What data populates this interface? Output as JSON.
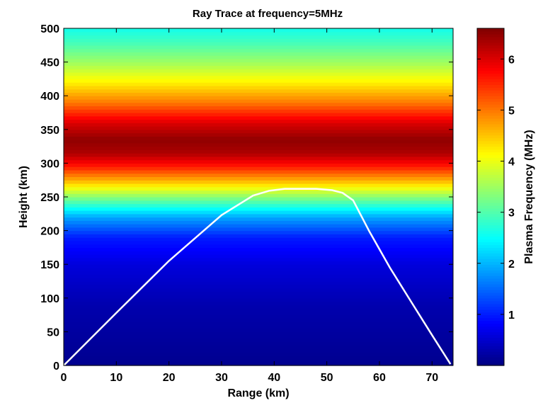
{
  "chart_data": {
    "type": "heatmap",
    "title": "Ray Trace at frequency=5MHz",
    "xlabel": "Range (km)",
    "ylabel": "Height (km)",
    "xlim": [
      0,
      74
    ],
    "ylim": [
      0,
      500
    ],
    "xticks": [
      0,
      10,
      20,
      30,
      40,
      50,
      60,
      70
    ],
    "yticks": [
      0,
      50,
      100,
      150,
      200,
      250,
      300,
      350,
      400,
      450,
      500
    ],
    "grid": false,
    "colormap": "jet",
    "colorbar": {
      "label": "Plasma Frequency (MHz)",
      "range": [
        0,
        6.6
      ],
      "ticks": [
        1,
        2,
        3,
        4,
        5,
        6
      ]
    },
    "plasma_profile": {
      "height_km": [
        0,
        90,
        150,
        190,
        220,
        245,
        270,
        295,
        315,
        335,
        360,
        390,
        420,
        450,
        480,
        500
      ],
      "plasma_freq_mhz": [
        0.1,
        0.3,
        0.6,
        1.0,
        1.9,
        3.1,
        4.4,
        5.6,
        6.3,
        6.5,
        6.0,
        5.0,
        4.2,
        3.5,
        2.9,
        2.6
      ]
    },
    "series": [
      {
        "type": "line",
        "color": "#ffffff",
        "x": [
          0,
          10,
          20,
          30,
          36,
          39,
          42,
          45,
          48,
          51,
          53,
          55,
          58,
          62,
          66,
          70,
          73.5
        ],
        "y": [
          0,
          78,
          155,
          223,
          252,
          259,
          262,
          262,
          262,
          260,
          256,
          245,
          200,
          145,
          95,
          45,
          2
        ]
      }
    ]
  }
}
